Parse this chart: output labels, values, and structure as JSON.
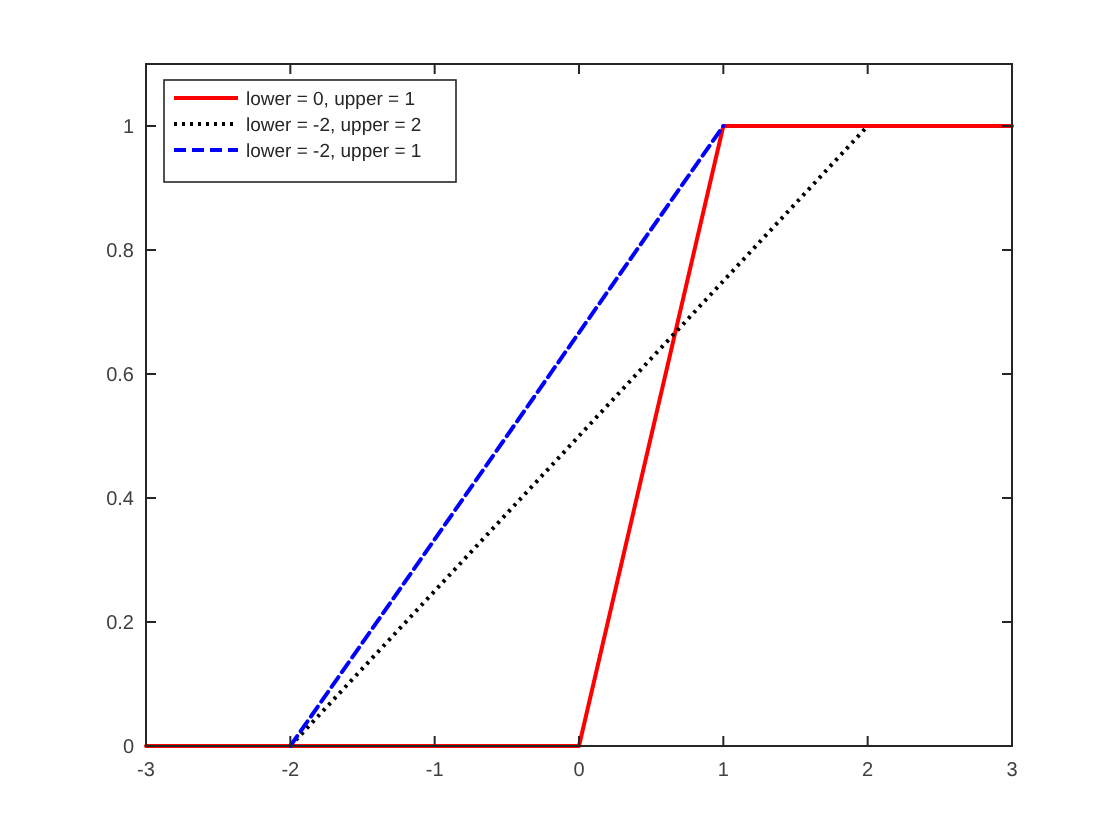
{
  "chart_data": {
    "type": "line",
    "xlim": [
      -3,
      3
    ],
    "xticks": [
      -3,
      -2,
      -1,
      0,
      1,
      2,
      3
    ],
    "ylim": [
      0,
      1.1
    ],
    "yticks": [
      0,
      0.2,
      0.4,
      0.6,
      0.8,
      1
    ],
    "grid": false,
    "legend": "top left",
    "series": [
      {
        "name": "lower = 0, upper = 1",
        "color": "#ff0000",
        "line_style": "solid",
        "x": [
          -3,
          0,
          1,
          3
        ],
        "values": [
          0,
          0,
          1,
          1
        ]
      },
      {
        "name": "lower = -2, upper = 2",
        "color": "#000000",
        "line_style": "dotted",
        "x": [
          -2,
          2
        ],
        "values": [
          0,
          1
        ]
      },
      {
        "name": "lower = -2, upper = 1",
        "color": "#0000ff",
        "line_style": "dashed",
        "x": [
          -2,
          1
        ],
        "values": [
          0,
          1
        ]
      }
    ]
  }
}
